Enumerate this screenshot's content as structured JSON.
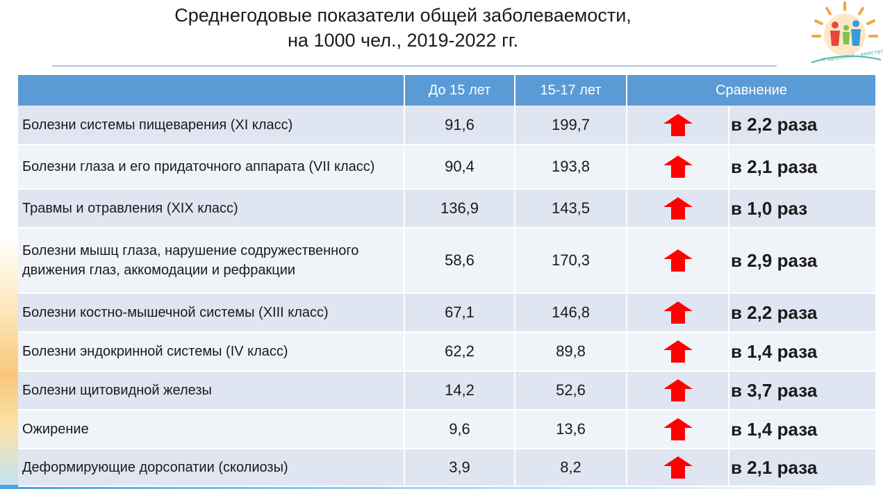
{
  "title": {
    "line1": "Среднегодовые показатели общей заболеваемости,",
    "line2": "на 1000 чел., 2019-2022 гг."
  },
  "logo": {
    "text": "К здоровью - вместе!",
    "icon": "sun-family-logo"
  },
  "table": {
    "columns": [
      "",
      "До 15 лет",
      "15-17 лет",
      "Сравнение"
    ],
    "rows": [
      {
        "name": "Болезни системы пищеварения (XI класс)",
        "under15": "91,6",
        "age15_17": "199,7",
        "trend": "up-arrow",
        "ratio": "в 2,2 раза"
      },
      {
        "name": "Болезни глаза и его придаточного аппарата (VII класс)",
        "under15": "90,4",
        "age15_17": "193,8",
        "trend": "up-arrow",
        "ratio": "в 2,1 раза"
      },
      {
        "name": "Травмы и отравления (XIX класс)",
        "under15": "136,9",
        "age15_17": "143,5",
        "trend": "up-arrow",
        "ratio": "в 1,0 раз"
      },
      {
        "name": "Болезни мышц глаза, нарушение содружественного движения глаз, аккомодации и рефракции",
        "under15": "58,6",
        "age15_17": "170,3",
        "trend": "up-arrow",
        "ratio": "в 2,9 раза"
      },
      {
        "name": "Болезни костно-мышечной системы (XIII класс)",
        "under15": "67,1",
        "age15_17": "146,8",
        "trend": "up-arrow",
        "ratio": "в 2,2 раза"
      },
      {
        "name": "Болезни эндокринной системы (IV класс)",
        "under15": "62,2",
        "age15_17": "89,8",
        "trend": "up-arrow",
        "ratio": "в 1,4 раза"
      },
      {
        "name": "Болезни щитовидной железы",
        "under15": "14,2",
        "age15_17": "52,6",
        "trend": "up-arrow",
        "ratio": "в 3,7 раза"
      },
      {
        "name": "Ожирение",
        "under15": "9,6",
        "age15_17": "13,6",
        "trend": "up-arrow",
        "ratio": "в 1,4 раза"
      },
      {
        "name": "Деформирующие дорсопатии (сколиозы)",
        "under15": "3,9",
        "age15_17": "8,2",
        "trend": "up-arrow",
        "ratio": "в 2,1 раза"
      }
    ]
  },
  "colors": {
    "header": "#5b9bd5",
    "row_odd": "#dfe6f1",
    "row_even": "#f0f3f8",
    "arrow": "#ff0000"
  }
}
